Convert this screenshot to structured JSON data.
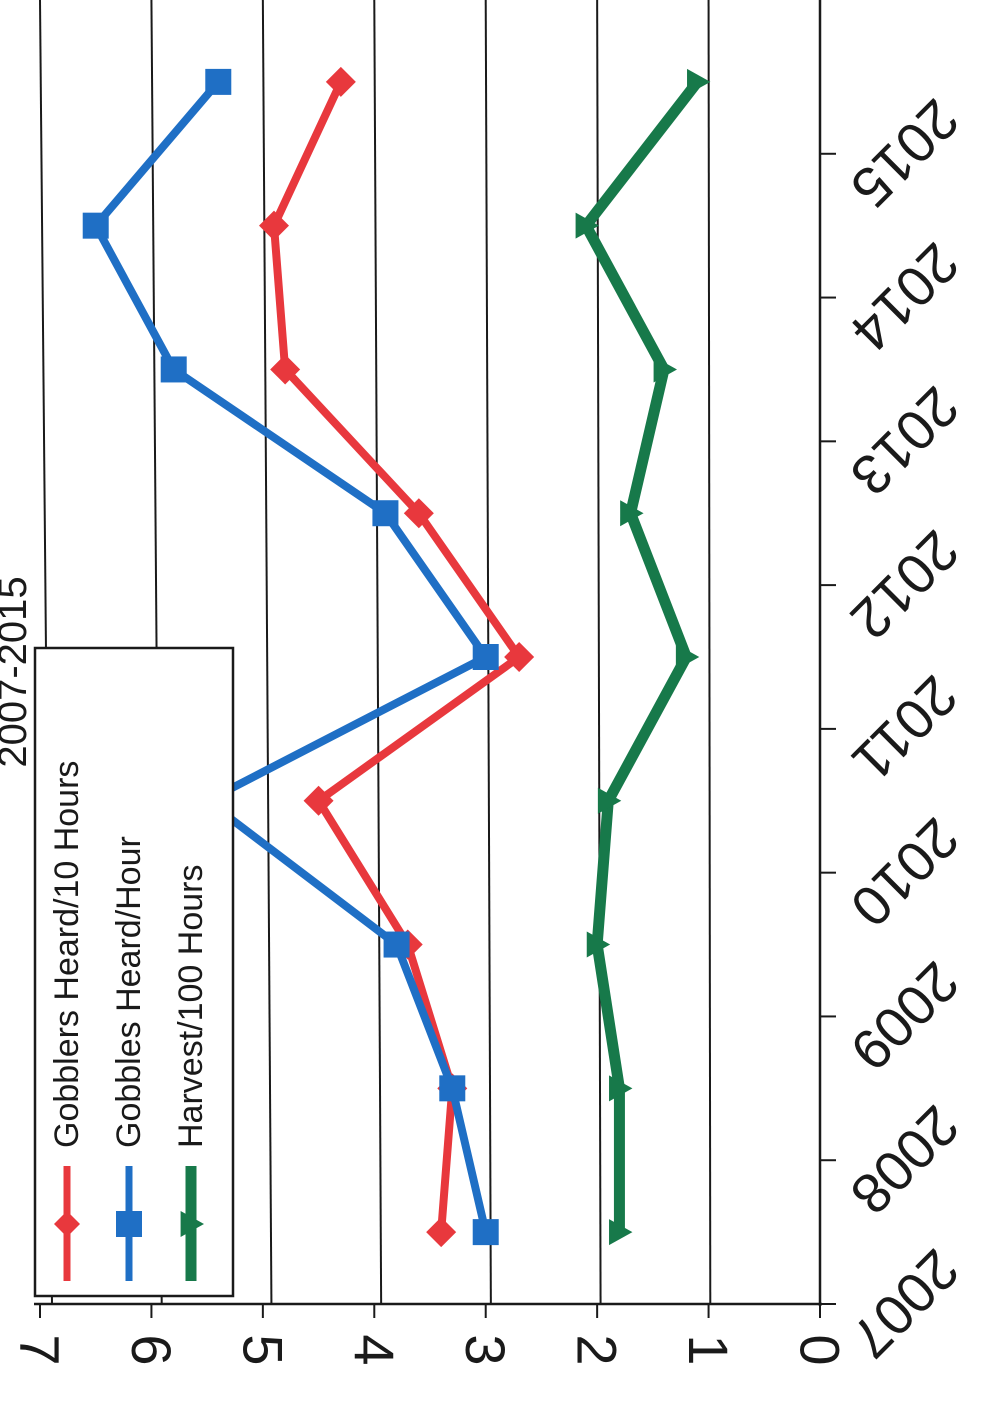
{
  "chart_data": {
    "type": "line",
    "title": "2007-2015",
    "orientation": "rotated-90-clockwise",
    "x": [
      2007.5,
      2008.5,
      2009.5,
      2010.5,
      2011.5,
      2012.5,
      2013.5,
      2014.5,
      2015.5
    ],
    "x_ticks": [
      "2007",
      "2008",
      "2009",
      "2010",
      "2011",
      "2012",
      "2013",
      "2014",
      "2015"
    ],
    "xlim": [
      2007,
      2016
    ],
    "ylim": [
      0,
      7
    ],
    "y_ticks": [
      "0",
      "1",
      "2",
      "3",
      "4",
      "5",
      "6",
      "7"
    ],
    "grid": "horizontal",
    "legend_position": "top-left",
    "series": [
      {
        "name": "Gobblers Heard/10 Hours",
        "color": "#e8383d",
        "marker": "diamond",
        "values": [
          3.4,
          3.3,
          3.7,
          4.5,
          2.7,
          3.6,
          4.8,
          4.9,
          4.3
        ]
      },
      {
        "name": "Gobbles Heard/Hour",
        "color": "#1f6fc5",
        "marker": "square",
        "values": [
          3.0,
          3.3,
          3.8,
          5.5,
          3.0,
          3.9,
          5.8,
          6.5,
          5.4
        ]
      },
      {
        "name": "Harvest/100 Hours",
        "color": "#17794a",
        "marker": "triangle",
        "values": [
          1.8,
          1.8,
          2.0,
          1.9,
          1.2,
          1.7,
          1.4,
          2.1,
          1.1
        ]
      }
    ]
  }
}
